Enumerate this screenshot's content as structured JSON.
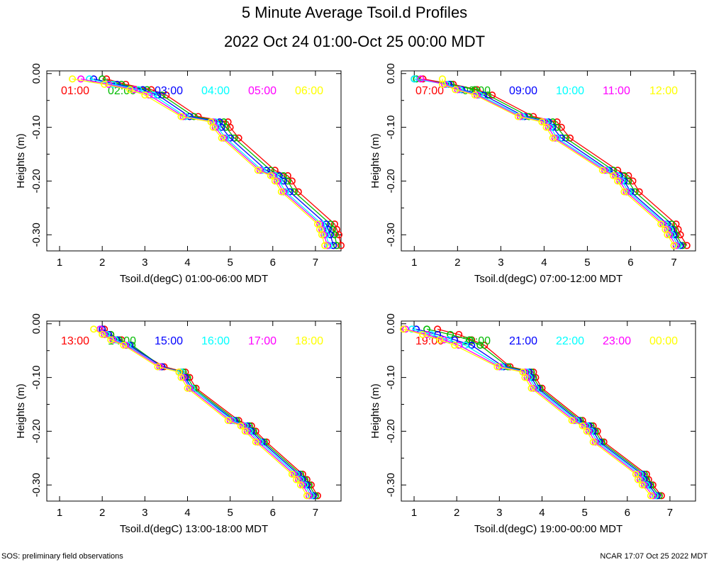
{
  "page": {
    "title": "5 Minute Average Tsoil.d Profiles",
    "subtitle": "2022 Oct 24 01:00-Oct 25 00:00 MDT",
    "footer_left": "SOS: preliminary field observations",
    "footer_right": "NCAR 17:07 Oct 25 2022 MDT"
  },
  "colors": {
    "red": "#ff0000",
    "green": "#00bb00",
    "blue": "#0000ff",
    "cyan": "#00ffff",
    "magenta": "#ff00ff",
    "yellow": "#ffff00"
  },
  "chart_data": [
    {
      "type": "line",
      "xlabel": "Tsoil.d(degC) 01:00-06:00 MDT",
      "ylabel": "Heights (m)",
      "xlim": [
        0.7,
        7.6
      ],
      "ylim": [
        -0.33,
        0.005
      ],
      "xticks": [
        1,
        2,
        3,
        4,
        5,
        6,
        7
      ],
      "yticks": [
        0.0,
        -0.1,
        -0.2,
        -0.3
      ],
      "ytick_labels": [
        "0.00",
        "-0.10",
        "-0.20",
        "-0.30"
      ],
      "series": [
        {
          "name": "01:00",
          "color": "#ff0000",
          "depths": [
            -0.01,
            -0.02,
            -0.03,
            -0.04,
            -0.08,
            -0.09,
            -0.1,
            -0.12,
            -0.18,
            -0.19,
            -0.2,
            -0.22,
            -0.28,
            -0.29,
            -0.3,
            -0.32
          ],
          "values": [
            2.1,
            2.55,
            3.15,
            3.5,
            4.25,
            4.95,
            5.0,
            5.2,
            6.05,
            6.35,
            6.45,
            6.6,
            7.45,
            7.5,
            7.55,
            7.6
          ]
        },
        {
          "name": "02:00",
          "color": "#00bb00",
          "depths": [
            -0.01,
            -0.02,
            -0.03,
            -0.04,
            -0.08,
            -0.09,
            -0.1,
            -0.12,
            -0.18,
            -0.19,
            -0.2,
            -0.22,
            -0.28,
            -0.29,
            -0.3,
            -0.32
          ],
          "values": [
            2.0,
            2.45,
            3.05,
            3.4,
            4.15,
            4.85,
            4.9,
            5.1,
            5.95,
            6.25,
            6.35,
            6.5,
            7.35,
            7.4,
            7.45,
            7.5
          ]
        },
        {
          "name": "03:00",
          "color": "#0000ff",
          "depths": [
            -0.01,
            -0.02,
            -0.03,
            -0.04,
            -0.08,
            -0.09,
            -0.1,
            -0.12,
            -0.18,
            -0.19,
            -0.2,
            -0.22,
            -0.28,
            -0.29,
            -0.3,
            -0.32
          ],
          "values": [
            1.8,
            2.35,
            2.95,
            3.3,
            4.05,
            4.75,
            4.8,
            5.0,
            5.85,
            6.15,
            6.25,
            6.4,
            7.25,
            7.3,
            7.35,
            7.42
          ]
        },
        {
          "name": "04:00",
          "color": "#00ffff",
          "depths": [
            -0.01,
            -0.02,
            -0.03,
            -0.04,
            -0.08,
            -0.09,
            -0.1,
            -0.12,
            -0.18,
            -0.19,
            -0.2,
            -0.22,
            -0.28,
            -0.29,
            -0.3,
            -0.32
          ],
          "values": [
            1.7,
            2.25,
            2.85,
            3.2,
            3.95,
            4.65,
            4.7,
            4.9,
            5.75,
            6.05,
            6.15,
            6.3,
            7.15,
            7.2,
            7.25,
            7.32
          ]
        },
        {
          "name": "05:00",
          "color": "#ff00ff",
          "depths": [
            -0.01,
            -0.02,
            -0.03,
            -0.04,
            -0.08,
            -0.09,
            -0.1,
            -0.12,
            -0.18,
            -0.19,
            -0.2,
            -0.22,
            -0.28,
            -0.29,
            -0.3,
            -0.32
          ],
          "values": [
            1.5,
            2.15,
            2.75,
            3.1,
            3.9,
            4.6,
            4.65,
            4.85,
            5.7,
            6.0,
            6.1,
            6.25,
            7.1,
            7.15,
            7.2,
            7.28
          ]
        },
        {
          "name": "06:00",
          "color": "#ffff00",
          "depths": [
            -0.01,
            -0.02,
            -0.03,
            -0.04,
            -0.08,
            -0.09,
            -0.1,
            -0.12,
            -0.18,
            -0.19,
            -0.2,
            -0.22,
            -0.28,
            -0.29,
            -0.3,
            -0.32
          ],
          "values": [
            1.3,
            2.05,
            2.65,
            3.0,
            3.85,
            4.55,
            4.6,
            4.8,
            5.65,
            5.95,
            6.05,
            6.2,
            7.05,
            7.1,
            7.15,
            7.22
          ]
        }
      ]
    },
    {
      "type": "line",
      "xlabel": "Tsoil.d(degC) 07:00-12:00 MDT",
      "ylabel": "Heights (m)",
      "xlim": [
        0.7,
        7.5
      ],
      "ylim": [
        -0.33,
        0.005
      ],
      "xticks": [
        1,
        2,
        3,
        4,
        5,
        6,
        7
      ],
      "yticks": [
        0.0,
        -0.1,
        -0.2,
        -0.3
      ],
      "ytick_labels": [
        "0.00",
        "-0.10",
        "-0.20",
        "-0.30"
      ],
      "series": [
        {
          "name": "07:00",
          "color": "#ff0000",
          "depths": [
            -0.01,
            -0.02,
            -0.03,
            -0.04,
            -0.08,
            -0.09,
            -0.1,
            -0.12,
            -0.18,
            -0.19,
            -0.2,
            -0.22,
            -0.28,
            -0.29,
            -0.3,
            -0.32
          ],
          "values": [
            1.2,
            1.9,
            2.45,
            2.8,
            3.75,
            4.3,
            4.4,
            4.6,
            5.7,
            5.95,
            6.05,
            6.2,
            7.05,
            7.1,
            7.15,
            7.3
          ]
        },
        {
          "name": "08:00",
          "color": "#00bb00",
          "depths": [
            -0.01,
            -0.02,
            -0.03,
            -0.04,
            -0.08,
            -0.09,
            -0.1,
            -0.12,
            -0.18,
            -0.19,
            -0.2,
            -0.22,
            -0.28,
            -0.29,
            -0.3,
            -0.32
          ],
          "values": [
            1.05,
            1.85,
            2.4,
            2.7,
            3.65,
            4.2,
            4.3,
            4.5,
            5.6,
            5.85,
            5.95,
            6.1,
            6.95,
            7.0,
            7.05,
            7.2
          ]
        },
        {
          "name": "09:00",
          "color": "#0000ff",
          "depths": [
            -0.01,
            -0.02,
            -0.03,
            -0.04,
            -0.08,
            -0.09,
            -0.1,
            -0.12,
            -0.18,
            -0.19,
            -0.2,
            -0.22,
            -0.28,
            -0.29,
            -0.3,
            -0.32
          ],
          "values": [
            1.0,
            1.8,
            2.1,
            2.6,
            3.55,
            4.1,
            4.2,
            4.4,
            5.5,
            5.75,
            5.85,
            6.0,
            6.85,
            6.95,
            7.0,
            7.15
          ]
        },
        {
          "name": "10:00",
          "color": "#00ffff",
          "depths": [
            -0.01,
            -0.02,
            -0.03,
            -0.04,
            -0.08,
            -0.09,
            -0.1,
            -0.12,
            -0.18,
            -0.19,
            -0.2,
            -0.22,
            -0.28,
            -0.29,
            -0.3,
            -0.32
          ],
          "values": [
            1.0,
            1.75,
            2.05,
            2.5,
            3.5,
            4.05,
            4.15,
            4.3,
            5.45,
            5.7,
            5.8,
            5.95,
            6.8,
            6.9,
            6.95,
            7.1
          ]
        },
        {
          "name": "11:00",
          "color": "#ff00ff",
          "depths": [
            -0.01,
            -0.02,
            -0.03,
            -0.04,
            -0.08,
            -0.09,
            -0.1,
            -0.12,
            -0.18,
            -0.19,
            -0.2,
            -0.22,
            -0.28,
            -0.29,
            -0.3,
            -0.32
          ],
          "values": [
            1.15,
            1.7,
            2.0,
            2.45,
            3.45,
            4.0,
            4.1,
            4.25,
            5.4,
            5.65,
            5.75,
            5.9,
            6.75,
            6.85,
            6.9,
            7.05
          ]
        },
        {
          "name": "12:00",
          "color": "#ffff00",
          "depths": [
            -0.01,
            -0.02,
            -0.03,
            -0.04,
            -0.08,
            -0.09,
            -0.1,
            -0.12,
            -0.18,
            -0.19,
            -0.2,
            -0.22,
            -0.28,
            -0.29,
            -0.3,
            -0.32
          ],
          "values": [
            1.65,
            1.65,
            1.95,
            2.4,
            3.4,
            3.95,
            4.05,
            4.2,
            5.35,
            5.6,
            5.7,
            5.85,
            6.7,
            6.8,
            6.85,
            7.0
          ]
        }
      ]
    },
    {
      "type": "line",
      "xlabel": "Tsoil.d(degC) 13:00-18:00 MDT",
      "ylabel": "Heights (m)",
      "xlim": [
        0.7,
        7.6
      ],
      "ylim": [
        -0.33,
        0.005
      ],
      "xticks": [
        1,
        2,
        3,
        4,
        5,
        6,
        7
      ],
      "yticks": [
        0.0,
        -0.1,
        -0.2,
        -0.3
      ],
      "ytick_labels": [
        "0.00",
        "-0.10",
        "-0.20",
        "-0.30"
      ],
      "series": [
        {
          "name": "13:00",
          "color": "#ff0000",
          "depths": [
            -0.01,
            -0.02,
            -0.03,
            -0.04,
            -0.08,
            -0.09,
            -0.1,
            -0.12,
            -0.18,
            -0.19,
            -0.2,
            -0.22,
            -0.28,
            -0.29,
            -0.3,
            -0.32
          ],
          "values": [
            2.05,
            2.2,
            2.45,
            2.6,
            3.45,
            3.95,
            4.05,
            4.2,
            5.2,
            5.5,
            5.6,
            5.85,
            6.7,
            6.8,
            6.9,
            7.05
          ]
        },
        {
          "name": "14:00",
          "color": "#00bb00",
          "depths": [
            -0.01,
            -0.02,
            -0.03,
            -0.04,
            -0.08,
            -0.09,
            -0.1,
            -0.12,
            -0.18,
            -0.19,
            -0.2,
            -0.22,
            -0.28,
            -0.29,
            -0.3,
            -0.32
          ],
          "values": [
            2.0,
            2.2,
            2.4,
            2.7,
            3.4,
            3.9,
            4.0,
            4.15,
            5.15,
            5.45,
            5.55,
            5.8,
            6.65,
            6.75,
            6.85,
            7.0
          ]
        },
        {
          "name": "15:00",
          "color": "#0000ff",
          "depths": [
            -0.01,
            -0.02,
            -0.03,
            -0.04,
            -0.08,
            -0.09,
            -0.1,
            -0.12,
            -0.18,
            -0.19,
            -0.2,
            -0.22,
            -0.28,
            -0.29,
            -0.3,
            -0.32
          ],
          "values": [
            2.0,
            2.15,
            2.35,
            2.65,
            3.4,
            3.85,
            3.95,
            4.1,
            5.1,
            5.4,
            5.5,
            5.75,
            6.6,
            6.7,
            6.8,
            6.95
          ]
        },
        {
          "name": "16:00",
          "color": "#00ffff",
          "depths": [
            -0.01,
            -0.02,
            -0.03,
            -0.04,
            -0.08,
            -0.09,
            -0.1,
            -0.12,
            -0.18,
            -0.19,
            -0.2,
            -0.22,
            -0.28,
            -0.29,
            -0.3,
            -0.32
          ],
          "values": [
            1.95,
            2.1,
            2.3,
            2.6,
            3.35,
            3.85,
            3.9,
            4.1,
            5.05,
            5.35,
            5.45,
            5.7,
            6.55,
            6.65,
            6.75,
            6.9
          ]
        },
        {
          "name": "17:00",
          "color": "#ff00ff",
          "depths": [
            -0.01,
            -0.02,
            -0.03,
            -0.04,
            -0.08,
            -0.09,
            -0.1,
            -0.12,
            -0.18,
            -0.19,
            -0.2,
            -0.22,
            -0.28,
            -0.29,
            -0.3,
            -0.32
          ],
          "values": [
            1.95,
            2.05,
            2.25,
            2.55,
            3.35,
            3.8,
            3.9,
            4.05,
            5.0,
            5.3,
            5.4,
            5.65,
            6.5,
            6.6,
            6.7,
            6.85
          ]
        },
        {
          "name": "18:00",
          "color": "#ffff00",
          "depths": [
            -0.01,
            -0.02,
            -0.03,
            -0.04,
            -0.08,
            -0.09,
            -0.1,
            -0.12,
            -0.18,
            -0.19,
            -0.2,
            -0.22,
            -0.28,
            -0.29,
            -0.3,
            -0.32
          ],
          "values": [
            1.8,
            2.0,
            2.2,
            2.5,
            3.3,
            3.8,
            3.85,
            4.0,
            4.95,
            5.25,
            5.35,
            5.6,
            6.45,
            6.55,
            6.65,
            6.8
          ]
        }
      ]
    },
    {
      "type": "line",
      "xlabel": "Tsoil.d(degC) 19:00-00:00 MDT",
      "ylabel": "Heights (m)",
      "xlim": [
        0.7,
        7.6
      ],
      "ylim": [
        -0.33,
        0.005
      ],
      "xticks": [
        1,
        2,
        3,
        4,
        5,
        6,
        7
      ],
      "yticks": [
        0.0,
        -0.1,
        -0.2,
        -0.3
      ],
      "ytick_labels": [
        "0.00",
        "-0.10",
        "-0.20",
        "-0.30"
      ],
      "series": [
        {
          "name": "19:00",
          "color": "#ff0000",
          "depths": [
            -0.01,
            -0.02,
            -0.03,
            -0.04,
            -0.08,
            -0.09,
            -0.1,
            -0.12,
            -0.18,
            -0.19,
            -0.2,
            -0.22,
            -0.28,
            -0.29,
            -0.3,
            -0.32
          ],
          "values": [
            1.55,
            2.05,
            2.35,
            2.65,
            3.25,
            3.8,
            3.85,
            4.0,
            4.95,
            5.2,
            5.3,
            5.45,
            6.45,
            6.5,
            6.6,
            6.8
          ]
        },
        {
          "name": "20:00",
          "color": "#00bb00",
          "depths": [
            -0.01,
            -0.02,
            -0.03,
            -0.04,
            -0.08,
            -0.09,
            -0.1,
            -0.12,
            -0.18,
            -0.19,
            -0.2,
            -0.22,
            -0.28,
            -0.29,
            -0.3,
            -0.32
          ],
          "values": [
            1.3,
            1.85,
            2.3,
            2.55,
            3.2,
            3.75,
            3.8,
            3.95,
            4.9,
            5.15,
            5.25,
            5.4,
            6.4,
            6.45,
            6.55,
            6.75
          ]
        },
        {
          "name": "21:00",
          "color": "#0000ff",
          "depths": [
            -0.01,
            -0.02,
            -0.03,
            -0.04,
            -0.08,
            -0.09,
            -0.1,
            -0.12,
            -0.18,
            -0.19,
            -0.2,
            -0.22,
            -0.28,
            -0.29,
            -0.3,
            -0.32
          ],
          "values": [
            1.05,
            1.55,
            1.95,
            2.35,
            3.1,
            3.7,
            3.75,
            3.9,
            4.85,
            5.1,
            5.2,
            5.35,
            6.35,
            6.4,
            6.5,
            6.7
          ]
        },
        {
          "name": "22:00",
          "color": "#00ffff",
          "depths": [
            -0.01,
            -0.02,
            -0.03,
            -0.04,
            -0.08,
            -0.09,
            -0.1,
            -0.12,
            -0.18,
            -0.19,
            -0.2,
            -0.22,
            -0.28,
            -0.29,
            -0.3,
            -0.32
          ],
          "values": [
            0.95,
            1.4,
            1.8,
            2.2,
            3.05,
            3.65,
            3.7,
            3.85,
            4.8,
            5.05,
            5.15,
            5.3,
            6.3,
            6.35,
            6.45,
            6.65
          ]
        },
        {
          "name": "23:00",
          "color": "#ff00ff",
          "depths": [
            -0.01,
            -0.02,
            -0.03,
            -0.04,
            -0.08,
            -0.09,
            -0.1,
            -0.12,
            -0.18,
            -0.19,
            -0.2,
            -0.22,
            -0.28,
            -0.29,
            -0.3,
            -0.32
          ],
          "values": [
            0.8,
            1.3,
            1.7,
            2.05,
            3.0,
            3.6,
            3.65,
            3.8,
            4.75,
            5.0,
            5.1,
            5.25,
            6.25,
            6.3,
            6.4,
            6.6
          ]
        },
        {
          "name": "00:00",
          "color": "#ffff00",
          "depths": [
            -0.01,
            -0.02,
            -0.03,
            -0.04,
            -0.08,
            -0.09,
            -0.1,
            -0.12,
            -0.18,
            -0.19,
            -0.2,
            -0.22,
            -0.28,
            -0.29,
            -0.3,
            -0.32
          ],
          "values": [
            0.75,
            1.2,
            1.6,
            1.95,
            2.95,
            3.55,
            3.6,
            3.75,
            4.7,
            4.95,
            5.05,
            5.2,
            6.2,
            6.25,
            6.35,
            6.55
          ]
        }
      ]
    }
  ]
}
